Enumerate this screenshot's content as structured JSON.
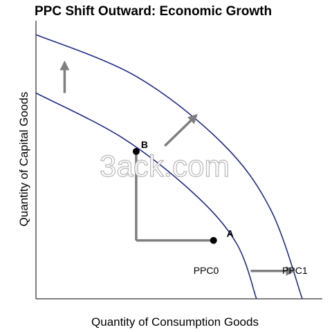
{
  "chart_data": {
    "type": "line",
    "title": "PPC Shift Outward: Economic Growth",
    "xlabel": "Quantity of Consumption Goods",
    "ylabel": "Quantity of Capital Goods",
    "xlim": [
      0,
      100
    ],
    "ylim": [
      0,
      100
    ],
    "grid": false,
    "legend": "none",
    "series": [
      {
        "name": "PPC0",
        "x": [
          0,
          30,
          55,
          70,
          77
        ],
        "y": [
          74,
          58,
          38,
          20,
          0
        ]
      },
      {
        "name": "PPC1",
        "x": [
          0,
          35,
          65,
          82,
          93
        ],
        "y": [
          95,
          80,
          56,
          32,
          0
        ]
      }
    ],
    "points": [
      {
        "label": "A",
        "x": 62,
        "y": 21
      },
      {
        "label": "B",
        "x": 35,
        "y": 53
      }
    ],
    "arrows": [
      {
        "from": [
          62,
          21
        ],
        "to": [
          35,
          21
        ],
        "head": false
      },
      {
        "from": [
          35,
          21
        ],
        "to": [
          35,
          53
        ],
        "head": false
      },
      {
        "from": [
          45,
          55
        ],
        "to": [
          56,
          66
        ],
        "head": true
      },
      {
        "from": [
          10,
          74
        ],
        "to": [
          10,
          85
        ],
        "head": true
      },
      {
        "from": [
          75,
          10
        ],
        "to": [
          90,
          10
        ],
        "head": true
      }
    ],
    "watermark": "3ack.com",
    "colors": {
      "curve": "#1f2a8a",
      "arrow": "#7f7f7f",
      "axis": "#000000"
    }
  }
}
